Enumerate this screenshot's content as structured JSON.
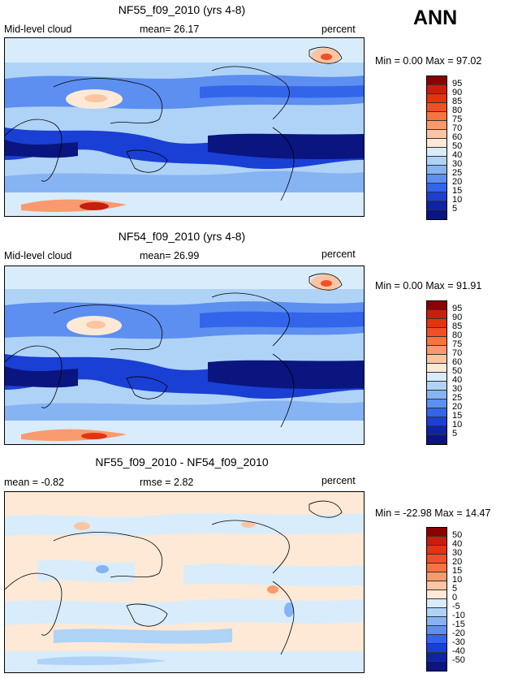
{
  "season": "ANN",
  "chart_data": [
    {
      "type": "heatmap",
      "title": "NF55_f09_2010 (yrs 4-8)",
      "left_label": "Mid-level cloud",
      "stat_text": "mean=  26.17",
      "units": "percent",
      "min_max_text": "Min =    0.00  Max =   97.02",
      "stat": {
        "mean": 26.17,
        "min": 0.0,
        "max": 97.02
      },
      "colorbar_levels": [
        "95",
        "90",
        "85",
        "80",
        "75",
        "70",
        "60",
        "50",
        "40",
        "30",
        "25",
        "20",
        "15",
        "10",
        "5"
      ],
      "colorbar_colors": [
        "#8b0000",
        "#c81e0e",
        "#e3330f",
        "#f14f26",
        "#f6743f",
        "#f99a6e",
        "#fbc5a4",
        "#fde9d6",
        "#d9ecfb",
        "#afd3f7",
        "#86b4f3",
        "#5d8ff0",
        "#3265ea",
        "#1a3fd4",
        "#0e23a6",
        "#0a1580"
      ]
    },
    {
      "type": "heatmap",
      "title": "NF54_f09_2010 (yrs 4-8)",
      "left_label": "Mid-level cloud",
      "stat_text": "mean=  26.99",
      "units": "percent",
      "min_max_text": "Min =    0.00  Max =   91.91",
      "stat": {
        "mean": 26.99,
        "min": 0.0,
        "max": 91.91
      },
      "colorbar_levels": [
        "95",
        "90",
        "85",
        "80",
        "75",
        "70",
        "60",
        "50",
        "40",
        "30",
        "25",
        "20",
        "15",
        "10",
        "5"
      ],
      "colorbar_colors": [
        "#8b0000",
        "#c81e0e",
        "#e3330f",
        "#f14f26",
        "#f6743f",
        "#f99a6e",
        "#fbc5a4",
        "#fde9d6",
        "#d9ecfb",
        "#afd3f7",
        "#86b4f3",
        "#5d8ff0",
        "#3265ea",
        "#1a3fd4",
        "#0e23a6",
        "#0a1580"
      ]
    },
    {
      "type": "heatmap",
      "title": "NF55_f09_2010 - NF54_f09_2010",
      "left_label": "mean =  -0.82",
      "stat_text": "rmse =   2.82",
      "units": "percent",
      "min_max_text": "Min = -22.98  Max =   14.47",
      "stat": {
        "mean": -0.82,
        "rmse": 2.82,
        "min": -22.98,
        "max": 14.47
      },
      "colorbar_levels": [
        "50",
        "40",
        "30",
        "20",
        "15",
        "10",
        "5",
        "0",
        "-5",
        "-10",
        "-15",
        "-20",
        "-30",
        "-40",
        "-50"
      ],
      "colorbar_colors": [
        "#8b0000",
        "#c81e0e",
        "#e3330f",
        "#f14f26",
        "#f6743f",
        "#f99a6e",
        "#fbc5a4",
        "#fde9d6",
        "#d9ecfb",
        "#afd3f7",
        "#86b4f3",
        "#5d8ff0",
        "#3265ea",
        "#1a3fd4",
        "#0e23a6",
        "#0a1580"
      ]
    }
  ]
}
